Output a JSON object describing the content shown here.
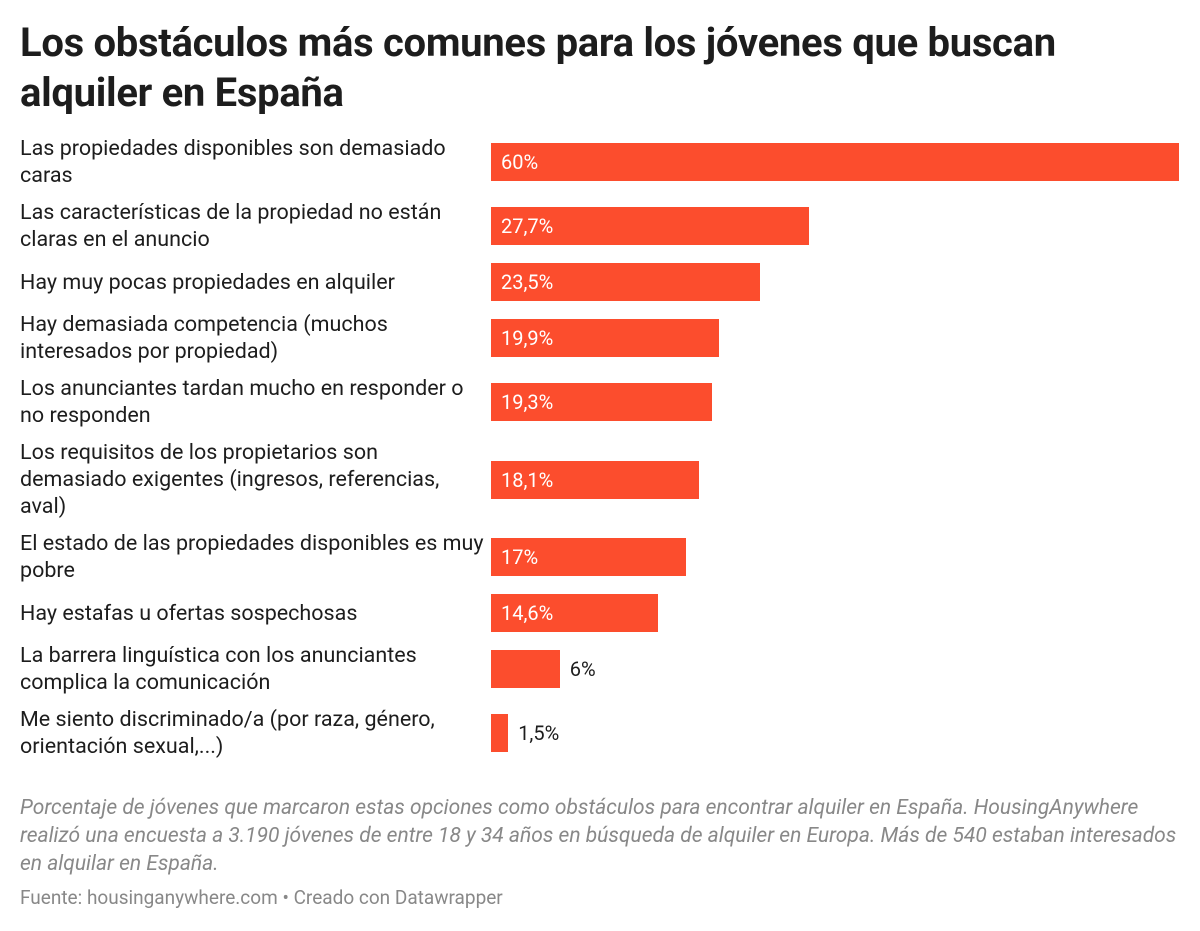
{
  "chart_data": {
    "type": "bar",
    "title": "Los obstáculos más comunes para los jóvenes que buscan alquiler en España",
    "categories": [
      "Las propiedades disponibles son demasiado caras",
      "Las características de la propiedad no están claras en el anuncio",
      "Hay muy pocas propiedades en alquiler",
      "Hay demasiada competencia (muchos interesados por propiedad)",
      "Los anunciantes tardan mucho en responder o no responden",
      "Los requisitos de los propietarios son demasiado exigentes (ingresos, referencias, aval)",
      "El estado de las propiedades disponibles es muy pobre",
      "Hay estafas u ofertas sospechosas",
      "La barrera linguística con los anunciantes complica la comunicación",
      "Me siento discriminado/a (por raza, género, orientación sexual,...)"
    ],
    "values": [
      60,
      27.7,
      23.5,
      19.9,
      19.3,
      18.1,
      17,
      14.6,
      6,
      1.5
    ],
    "value_labels": [
      "60%",
      "27,7%",
      "23,5%",
      "19,9%",
      "19,3%",
      "18,1%",
      "17%",
      "14,6%",
      "6%",
      "1,5%"
    ],
    "color": "#fc4d2d",
    "notes": "Porcentaje de jóvenes que marcaron estas opciones como obstáculos para encontrar alquiler en España. HousingAnywhere realizó una encuesta a 3.190 jóvenes de entre 18 y 34 años en búsqueda de alquiler en Europa. Más de 540 estaban interesados en alquilar en España.",
    "source": "Fuente: housinganywhere.com • Creado con Datawrapper"
  }
}
